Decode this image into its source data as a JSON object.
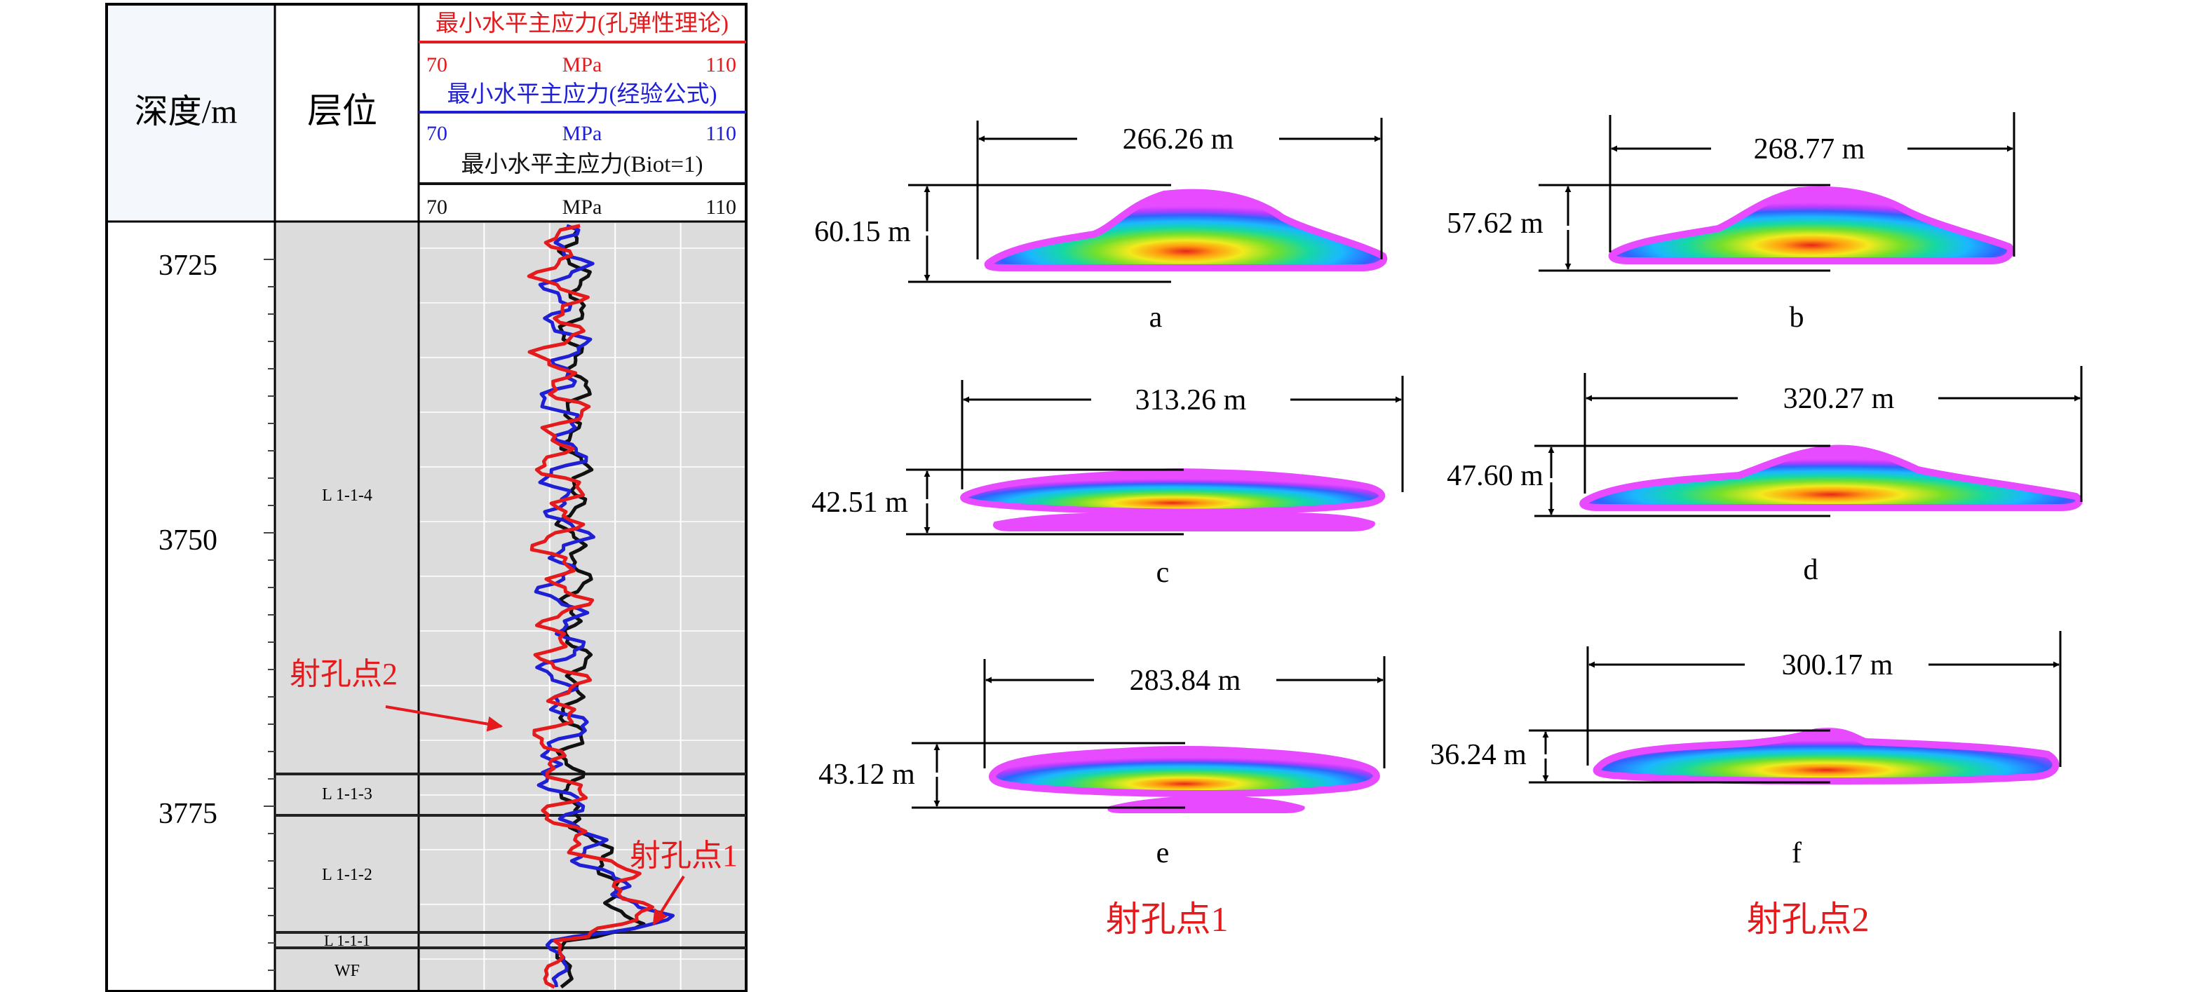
{
  "log": {
    "depth_header": "深度/m",
    "layer_header": "层位",
    "curves": [
      {
        "label": "最小水平主应力(孔弹性理论)",
        "min": "70",
        "unit": "MPa",
        "max": "110",
        "color": "#e41a1c"
      },
      {
        "label": "最小水平主应力(经验公式)",
        "min": "70",
        "unit": "MPa",
        "max": "110",
        "color": "#1f1fd6"
      },
      {
        "label": "最小水平主应力(Biot=1)",
        "min": "70",
        "unit": "MPa",
        "max": "110",
        "color": "#111111"
      }
    ],
    "depth_labels": [
      "3725",
      "3750",
      "3775"
    ],
    "layers": [
      "L 1-1-4",
      "L 1-1-3",
      "L 1-1-2",
      "L 1-1-1",
      "WF"
    ],
    "annotations": [
      "射孔点2",
      "射孔点1"
    ]
  },
  "fractures": [
    {
      "id": "a",
      "width": "266.26 m",
      "height": "60.15 m"
    },
    {
      "id": "b",
      "width": "268.77 m",
      "height": "57.62 m"
    },
    {
      "id": "c",
      "width": "313.26 m",
      "height": "42.51 m"
    },
    {
      "id": "d",
      "width": "320.27 m",
      "height": "47.60 m"
    },
    {
      "id": "e",
      "width": "283.84 m",
      "height": "43.12 m"
    },
    {
      "id": "f",
      "width": "300.17 m",
      "height": "36.24 m"
    }
  ],
  "column_titles": [
    "射孔点1",
    "射孔点2"
  ],
  "colors": {
    "red": "#e41a1c",
    "blue": "#1f1fd6",
    "black": "#111111",
    "track_bg": "#dcdcdc",
    "header_bg": "#f4f7fc"
  }
}
